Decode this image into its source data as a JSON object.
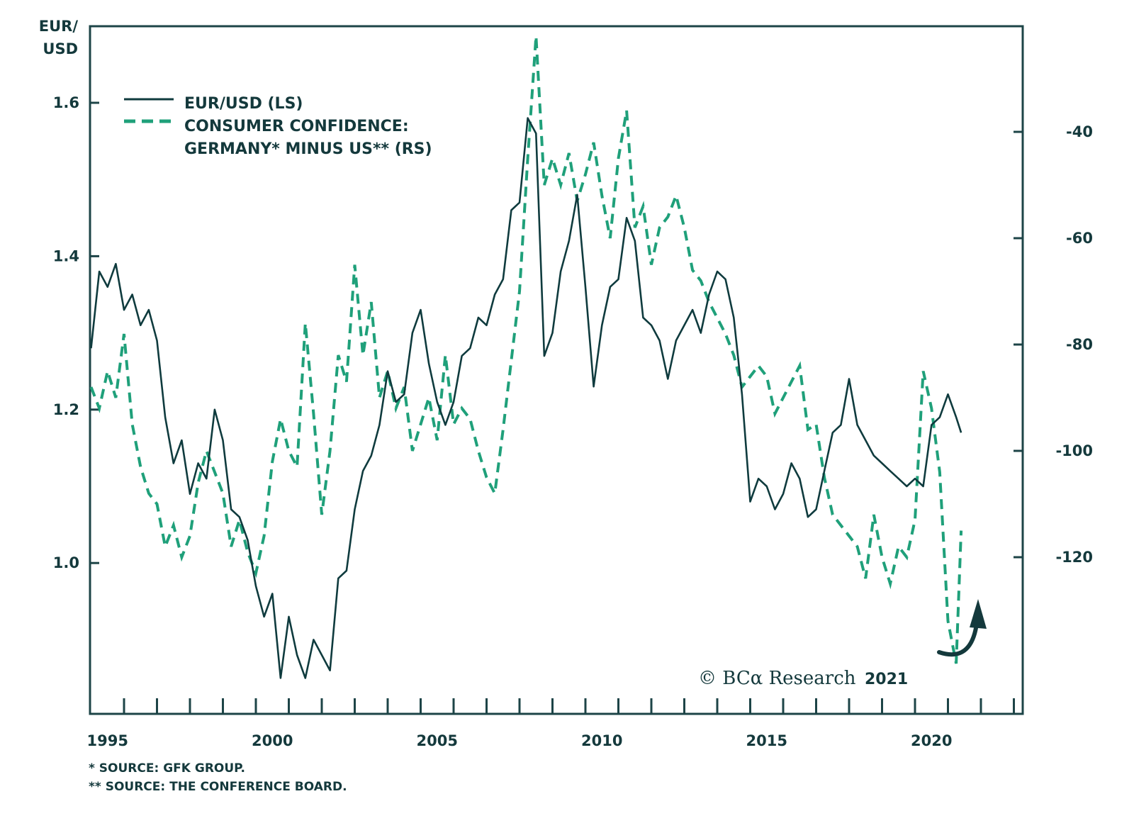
{
  "chart_data": {
    "type": "line",
    "title": "",
    "left_axis": {
      "label_line1": "EUR/",
      "label_line2": "USD",
      "ticks": [
        "1.0",
        "1.2",
        "1.4",
        "1.6"
      ],
      "tick_values": [
        1.0,
        1.2,
        1.4,
        1.6
      ],
      "range": [
        0.82,
        1.68
      ]
    },
    "right_axis": {
      "ticks": [
        "-40",
        "-60",
        "-80",
        "-100",
        "-120"
      ],
      "tick_values": [
        -40,
        -60,
        -80,
        -100,
        -120
      ],
      "range": [
        -150,
        -23
      ]
    },
    "x_axis": {
      "tick_labels": [
        "1995",
        "2000",
        "2005",
        "2010",
        "2015",
        "2020"
      ],
      "tick_values": [
        1995,
        2000,
        2005,
        2010,
        2015,
        2020
      ],
      "range": [
        1995,
        2023.4
      ],
      "minor_ticks_every_year": true
    },
    "legend": {
      "placement": "top-left",
      "items": [
        {
          "label": "EUR/USD (LS)",
          "style": "solid"
        },
        {
          "label_line1": "CONSUMER CONFIDENCE:",
          "label_line2": "GERMANY* MINUS US** (RS)",
          "style": "dashed"
        }
      ]
    },
    "colors": {
      "eurusd": "#0f3b3e",
      "confidence": "#1fa07a",
      "axis": "#1d4447"
    },
    "series": [
      {
        "name": "EUR/USD (LS)",
        "axis": "left",
        "x": [
          1995.0,
          1995.25,
          1995.5,
          1995.75,
          1996.0,
          1996.25,
          1996.5,
          1996.75,
          1997.0,
          1997.25,
          1997.5,
          1997.75,
          1998.0,
          1998.25,
          1998.5,
          1998.75,
          1999.0,
          1999.25,
          1999.5,
          1999.75,
          2000.0,
          2000.25,
          2000.5,
          2000.75,
          2001.0,
          2001.25,
          2001.5,
          2001.75,
          2002.0,
          2002.25,
          2002.5,
          2002.75,
          2003.0,
          2003.25,
          2003.5,
          2003.75,
          2004.0,
          2004.25,
          2004.5,
          2004.75,
          2005.0,
          2005.25,
          2005.5,
          2005.75,
          2006.0,
          2006.25,
          2006.5,
          2006.75,
          2007.0,
          2007.25,
          2007.5,
          2007.75,
          2008.0,
          2008.25,
          2008.5,
          2008.75,
          2009.0,
          2009.25,
          2009.5,
          2009.75,
          2010.0,
          2010.25,
          2010.5,
          2010.75,
          2011.0,
          2011.25,
          2011.5,
          2011.75,
          2012.0,
          2012.25,
          2012.5,
          2012.75,
          2013.0,
          2013.25,
          2013.5,
          2013.75,
          2014.0,
          2014.25,
          2014.5,
          2014.75,
          2015.0,
          2015.25,
          2015.5,
          2015.75,
          2016.0,
          2016.25,
          2016.5,
          2016.75,
          2017.0,
          2017.25,
          2017.5,
          2017.75,
          2018.0,
          2018.25,
          2018.5,
          2018.75,
          2019.0,
          2019.25,
          2019.5,
          2019.75,
          2020.0,
          2020.25,
          2020.5,
          2020.75,
          2021.0,
          2021.25,
          2021.4
        ],
        "values": [
          1.28,
          1.38,
          1.36,
          1.39,
          1.33,
          1.35,
          1.31,
          1.33,
          1.29,
          1.19,
          1.13,
          1.16,
          1.09,
          1.13,
          1.11,
          1.2,
          1.16,
          1.07,
          1.06,
          1.03,
          0.97,
          0.93,
          0.96,
          0.85,
          0.93,
          0.88,
          0.85,
          0.9,
          0.88,
          0.86,
          0.98,
          0.99,
          1.07,
          1.12,
          1.14,
          1.18,
          1.25,
          1.21,
          1.22,
          1.3,
          1.33,
          1.26,
          1.21,
          1.18,
          1.21,
          1.27,
          1.28,
          1.32,
          1.31,
          1.35,
          1.37,
          1.46,
          1.47,
          1.58,
          1.56,
          1.27,
          1.3,
          1.38,
          1.42,
          1.48,
          1.36,
          1.23,
          1.31,
          1.36,
          1.37,
          1.45,
          1.42,
          1.32,
          1.31,
          1.29,
          1.24,
          1.29,
          1.31,
          1.33,
          1.3,
          1.35,
          1.38,
          1.37,
          1.32,
          1.22,
          1.08,
          1.11,
          1.1,
          1.07,
          1.09,
          1.13,
          1.11,
          1.06,
          1.07,
          1.12,
          1.17,
          1.18,
          1.24,
          1.18,
          1.16,
          1.14,
          1.13,
          1.12,
          1.11,
          1.1,
          1.11,
          1.1,
          1.18,
          1.19,
          1.22,
          1.19,
          1.17
        ]
      },
      {
        "name": "CONSUMER CONFIDENCE: GERMANY* MINUS US** (RS)",
        "axis": "right",
        "x": [
          1995.0,
          1995.25,
          1995.5,
          1995.75,
          1996.0,
          1996.25,
          1996.5,
          1996.75,
          1997.0,
          1997.25,
          1997.5,
          1997.75,
          1998.0,
          1998.25,
          1998.5,
          1998.75,
          1999.0,
          1999.25,
          1999.5,
          1999.75,
          2000.0,
          2000.25,
          2000.5,
          2000.75,
          2001.0,
          2001.25,
          2001.5,
          2001.75,
          2002.0,
          2002.25,
          2002.5,
          2002.75,
          2003.0,
          2003.25,
          2003.5,
          2003.75,
          2004.0,
          2004.25,
          2004.5,
          2004.75,
          2005.0,
          2005.25,
          2005.5,
          2005.75,
          2006.0,
          2006.25,
          2006.5,
          2006.75,
          2007.0,
          2007.25,
          2007.5,
          2007.75,
          2008.0,
          2008.25,
          2008.5,
          2008.75,
          2009.0,
          2009.25,
          2009.5,
          2009.75,
          2010.0,
          2010.25,
          2010.5,
          2010.75,
          2011.0,
          2011.25,
          2011.5,
          2011.75,
          2012.0,
          2012.25,
          2012.5,
          2012.75,
          2013.0,
          2013.25,
          2013.5,
          2013.75,
          2014.0,
          2014.25,
          2014.5,
          2014.75,
          2015.0,
          2015.25,
          2015.5,
          2015.75,
          2016.0,
          2016.25,
          2016.5,
          2016.75,
          2017.0,
          2017.25,
          2017.5,
          2017.75,
          2018.0,
          2018.25,
          2018.5,
          2018.75,
          2019.0,
          2019.25,
          2019.5,
          2019.75,
          2020.0,
          2020.25,
          2020.5,
          2020.75,
          2021.0,
          2021.25,
          2021.4
        ],
        "values": [
          -88,
          -92,
          -85,
          -90,
          -78,
          -95,
          -103,
          -108,
          -110,
          -118,
          -114,
          -120,
          -116,
          -106,
          -100,
          -104,
          -108,
          -118,
          -113,
          -119,
          -123,
          -116,
          -102,
          -94,
          -100,
          -103,
          -76,
          -93,
          -112,
          -100,
          -82,
          -87,
          -65,
          -82,
          -72,
          -90,
          -85,
          -92,
          -88,
          -100,
          -95,
          -90,
          -98,
          -82,
          -95,
          -92,
          -94,
          -100,
          -105,
          -108,
          -96,
          -83,
          -70,
          -45,
          -22,
          -50,
          -45,
          -50,
          -44,
          -53,
          -48,
          -42,
          -52,
          -60,
          -45,
          -36,
          -58,
          -54,
          -65,
          -58,
          -56,
          -52,
          -58,
          -66,
          -68,
          -72,
          -75,
          -78,
          -82,
          -88,
          -86,
          -84,
          -86,
          -93,
          -90,
          -87,
          -84,
          -96,
          -95,
          -105,
          -112,
          -114,
          -116,
          -118,
          -124,
          -112,
          -120,
          -125,
          -118,
          -120,
          -113,
          -85,
          -92,
          -104,
          -132,
          -140,
          -115
        ]
      }
    ],
    "annotations": [
      {
        "type": "arrow",
        "description": "curved upward arrow near 2021 low"
      }
    ]
  },
  "notes": {
    "note1": "*  SOURCE: GFK GROUP.",
    "note2": "** SOURCE: THE CONFERENCE BOARD."
  },
  "copyright": {
    "text": "© BCα Research",
    "year": "2021"
  }
}
